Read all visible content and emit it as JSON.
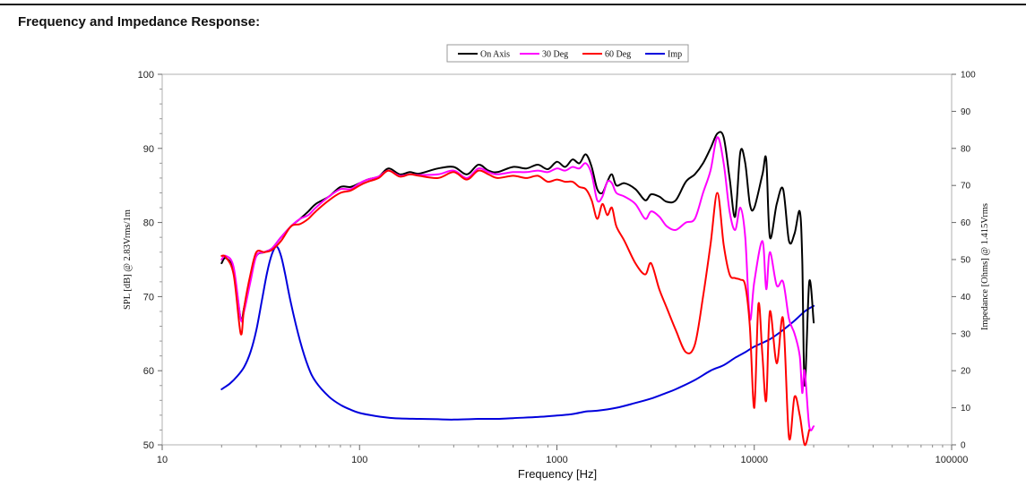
{
  "page": {
    "title": "Frequency and Impedance Response:"
  },
  "chart_data": {
    "type": "line",
    "title": "Frequency and Impedance Response:",
    "xlabel": "Frequency [Hz]",
    "ylabel": "SPL [dB] @ 2.83Vrms/1m",
    "y2label": "Impedance [Ohms] @ 1.415Vrms",
    "x_scale": "log",
    "xlim": [
      10,
      100000
    ],
    "ylim": [
      50,
      100
    ],
    "y2lim": [
      0,
      100
    ],
    "x_ticks": [
      "10",
      "100",
      "1000",
      "10000",
      "100000"
    ],
    "y_ticks": [
      "50",
      "60",
      "70",
      "80",
      "90",
      "100"
    ],
    "y2_ticks": [
      "0",
      "10",
      "20",
      "30",
      "40",
      "50",
      "60",
      "70",
      "80",
      "90",
      "100"
    ],
    "grid": false,
    "legend_position": "top-center",
    "series": [
      {
        "name": "On Axis",
        "color": "#000000",
        "axis": "left",
        "x": [
          20,
          21,
          23,
          25,
          26,
          28,
          30,
          33,
          36,
          40,
          45,
          50,
          55,
          60,
          70,
          80,
          90,
          100,
          110,
          125,
          140,
          160,
          180,
          200,
          250,
          300,
          350,
          400,
          450,
          500,
          600,
          700,
          800,
          900,
          1000,
          1100,
          1200,
          1300,
          1400,
          1500,
          1600,
          1700,
          1800,
          1900,
          2000,
          2200,
          2500,
          2800,
          3000,
          3300,
          3600,
          4000,
          4500,
          5000,
          5500,
          6000,
          6500,
          7000,
          7500,
          8000,
          8500,
          9000,
          9500,
          10000,
          11000,
          11500,
          12000,
          13000,
          14000,
          15000,
          16000,
          17000,
          17500,
          18000,
          19000,
          20000
        ],
        "y": [
          74.5,
          75.2,
          73.5,
          67.0,
          68.5,
          72.5,
          75.5,
          76.0,
          76.5,
          78.0,
          79.5,
          80.5,
          81.5,
          82.5,
          83.5,
          84.8,
          84.8,
          85.3,
          85.8,
          86.2,
          87.3,
          86.5,
          86.8,
          86.6,
          87.3,
          87.5,
          86.5,
          87.8,
          87.0,
          86.8,
          87.5,
          87.3,
          87.8,
          87.2,
          88.2,
          87.5,
          88.5,
          88.0,
          89.2,
          87.5,
          84.5,
          84.0,
          85.5,
          86.5,
          85.0,
          85.3,
          84.5,
          83.0,
          83.8,
          83.5,
          82.8,
          83.0,
          85.5,
          86.5,
          88.0,
          90.0,
          92.0,
          91.5,
          86.0,
          80.8,
          89.5,
          88.0,
          82.5,
          82.0,
          86.5,
          88.5,
          78.0,
          82.5,
          84.5,
          77.5,
          78.5,
          81.5,
          75.0,
          58.0,
          72.0,
          66.5
        ]
      },
      {
        "name": "30 Deg",
        "color": "#ff00ff",
        "axis": "left",
        "x": [
          20,
          21,
          23,
          25,
          26,
          28,
          30,
          33,
          36,
          40,
          45,
          50,
          55,
          60,
          70,
          80,
          90,
          100,
          110,
          125,
          140,
          160,
          180,
          200,
          250,
          300,
          350,
          400,
          450,
          500,
          600,
          700,
          800,
          900,
          1000,
          1100,
          1200,
          1300,
          1400,
          1500,
          1600,
          1700,
          1800,
          1900,
          2000,
          2200,
          2500,
          2800,
          3000,
          3300,
          3600,
          4000,
          4500,
          5000,
          5500,
          6000,
          6500,
          7000,
          7500,
          8000,
          8500,
          9000,
          9500,
          10000,
          11000,
          11500,
          12000,
          13000,
          14000,
          15000,
          16000,
          17000,
          17500,
          18000,
          19000,
          20000
        ],
        "y": [
          75.0,
          75.5,
          74.0,
          67.0,
          68.0,
          72.0,
          75.5,
          76.0,
          76.5,
          78.0,
          79.5,
          80.5,
          81.0,
          82.0,
          83.5,
          84.5,
          84.5,
          85.3,
          85.8,
          86.2,
          87.0,
          86.3,
          86.5,
          86.4,
          86.5,
          87.0,
          86.0,
          87.3,
          86.8,
          86.5,
          86.8,
          86.8,
          87.0,
          86.8,
          87.3,
          87.0,
          87.5,
          87.3,
          88.0,
          86.5,
          83.0,
          83.5,
          85.5,
          85.3,
          84.0,
          83.5,
          82.5,
          80.5,
          81.5,
          80.8,
          79.5,
          79.0,
          80.0,
          80.5,
          84.0,
          87.0,
          91.5,
          88.0,
          81.5,
          79.0,
          82.0,
          78.0,
          67.0,
          72.0,
          77.5,
          71.0,
          76.0,
          71.5,
          72.0,
          67.0,
          65.0,
          62.0,
          57.0,
          60.0,
          52.5,
          52.5
        ]
      },
      {
        "name": "60 Deg",
        "color": "#ff0000",
        "axis": "left",
        "x": [
          20,
          21,
          23,
          25,
          26,
          28,
          30,
          33,
          36,
          40,
          45,
          50,
          55,
          60,
          70,
          80,
          90,
          100,
          110,
          125,
          140,
          160,
          180,
          200,
          250,
          300,
          350,
          400,
          450,
          500,
          600,
          700,
          800,
          900,
          1000,
          1100,
          1200,
          1300,
          1400,
          1500,
          1600,
          1700,
          1800,
          1900,
          2000,
          2200,
          2500,
          2800,
          3000,
          3300,
          3600,
          4000,
          4500,
          5000,
          5500,
          6000,
          6500,
          7000,
          7500,
          8000,
          8500,
          9000,
          9500,
          10000,
          10500,
          11000,
          11500,
          12000,
          13000,
          14000,
          15000,
          16000,
          17000,
          18000,
          19000
        ],
        "y": [
          75.5,
          75.3,
          73.0,
          65.0,
          68.5,
          73.0,
          76.0,
          76.0,
          76.3,
          77.5,
          79.5,
          79.8,
          80.5,
          81.5,
          83.0,
          84.0,
          84.3,
          85.0,
          85.5,
          86.0,
          87.0,
          86.2,
          86.5,
          86.3,
          86.0,
          86.8,
          85.8,
          87.0,
          86.5,
          86.0,
          86.3,
          86.0,
          86.3,
          85.5,
          85.8,
          85.5,
          85.5,
          84.8,
          84.5,
          83.0,
          80.5,
          82.5,
          81.0,
          82.0,
          79.5,
          77.5,
          74.5,
          73.0,
          74.5,
          71.0,
          68.5,
          65.5,
          62.5,
          63.5,
          70.0,
          77.0,
          84.0,
          77.0,
          73.0,
          72.5,
          72.3,
          71.5,
          66.0,
          55.0,
          69.0,
          62.0,
          56.0,
          68.0,
          61.0,
          67.0,
          51.0,
          56.5,
          54.0,
          50.0,
          52.0
        ]
      },
      {
        "name": "Imp",
        "color": "#0000dd",
        "axis": "right",
        "x": [
          20,
          22,
          24,
          26,
          28,
          30,
          32,
          34,
          36,
          38,
          40,
          42,
          45,
          50,
          55,
          60,
          70,
          80,
          90,
          100,
          120,
          150,
          200,
          250,
          300,
          400,
          500,
          600,
          800,
          1000,
          1200,
          1400,
          1600,
          2000,
          2500,
          3000,
          3500,
          4000,
          5000,
          6000,
          7000,
          8000,
          9000,
          10000,
          12000,
          14000,
          16000,
          18000,
          20000
        ],
        "y": [
          15.0,
          16.5,
          18.5,
          21.0,
          25.0,
          31.0,
          39.0,
          46.5,
          51.5,
          53.5,
          51.0,
          46.0,
          38.0,
          28.0,
          21.0,
          17.0,
          13.0,
          10.8,
          9.5,
          8.6,
          7.8,
          7.2,
          7.0,
          6.9,
          6.8,
          7.0,
          7.0,
          7.2,
          7.5,
          7.9,
          8.3,
          9.0,
          9.2,
          10.0,
          11.3,
          12.5,
          13.8,
          15.0,
          17.5,
          20.0,
          21.5,
          23.5,
          25.0,
          26.5,
          28.5,
          31.0,
          33.5,
          36.0,
          37.5
        ]
      }
    ]
  }
}
